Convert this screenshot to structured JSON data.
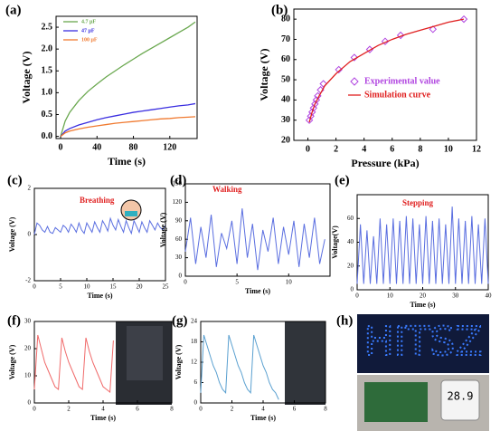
{
  "chart_data": [
    {
      "type": "line",
      "label": "(a)",
      "x_label": "Time (s)",
      "y_label": "Voltage (V)",
      "legend": "upper left",
      "x": [
        0,
        5,
        10,
        20,
        30,
        40,
        50,
        60,
        70,
        80,
        90,
        100,
        110,
        120,
        130,
        140,
        148
      ],
      "series": [
        {
          "name": "4.7 μF",
          "color": "#6aa84f",
          "values": [
            0,
            0.35,
            0.55,
            0.82,
            1.03,
            1.2,
            1.36,
            1.5,
            1.64,
            1.77,
            1.9,
            2.02,
            2.14,
            2.26,
            2.38,
            2.5,
            2.62
          ]
        },
        {
          "name": "47 μF",
          "color": "#3a2ee0",
          "values": [
            0,
            0.12,
            0.18,
            0.26,
            0.32,
            0.38,
            0.43,
            0.47,
            0.51,
            0.55,
            0.58,
            0.61,
            0.64,
            0.67,
            0.7,
            0.72,
            0.75
          ]
        },
        {
          "name": "100 μF",
          "color": "#f07a30",
          "values": [
            0,
            0.08,
            0.12,
            0.17,
            0.21,
            0.24,
            0.27,
            0.3,
            0.32,
            0.34,
            0.36,
            0.38,
            0.4,
            0.41,
            0.43,
            0.44,
            0.45
          ]
        }
      ],
      "xlim": [
        -5,
        150
      ],
      "xticks": [
        0,
        40,
        80,
        120
      ],
      "ylim": [
        -0.05,
        2.75
      ],
      "yticks": [
        {
          "value": 0,
          "label": "0.0"
        },
        0.5,
        {
          "value": 1,
          "label": "1.0"
        },
        1.5,
        {
          "value": 2,
          "label": "2.0"
        },
        2.5
      ]
    },
    {
      "type": "scatter",
      "label": "(b)",
      "x_label": "Pressure (kPa)",
      "y_label": "Voltage (V)",
      "legend": "lower right",
      "series": [
        {
          "name": "Experimental value",
          "color": "#b044e0",
          "marker": "diamond",
          "x": [
            0.1,
            0.2,
            0.3,
            0.4,
            0.5,
            0.6,
            0.7,
            0.9,
            1.1,
            2.2,
            3.3,
            4.4,
            5.5,
            6.6,
            8.9,
            11.1
          ],
          "values": [
            30,
            32,
            34,
            36,
            38,
            40,
            42,
            45,
            48,
            55,
            61,
            65,
            69,
            72,
            75,
            80
          ]
        },
        {
          "name": "Simulation curve",
          "color": "#e02020",
          "x": [
            0.1,
            0.3,
            0.5,
            0.8,
            1.2,
            2,
            3,
            4,
            5,
            6,
            7,
            8,
            9,
            10,
            11.1
          ],
          "values": [
            29,
            34,
            38,
            42,
            47,
            53,
            59,
            63,
            67,
            70,
            72.5,
            74.5,
            76.5,
            78.5,
            80
          ]
        }
      ],
      "xlim": [
        -1,
        12
      ],
      "xticks": [
        0,
        2,
        4,
        6,
        8,
        10,
        12
      ],
      "ylim": [
        20,
        85
      ],
      "yticks": [
        20,
        30,
        40,
        50,
        60,
        70,
        80
      ]
    },
    {
      "type": "line",
      "label": "(c)",
      "x_label": "Time (s)",
      "y_label": "Voltage (V)",
      "annotation": "Breathing",
      "x": [
        0,
        0.5,
        1,
        1.5,
        2,
        2.5,
        3,
        3.5,
        4,
        4.5,
        5,
        5.5,
        6,
        6.5,
        7,
        7.5,
        8,
        8.5,
        9,
        9.5,
        10,
        10.5,
        11,
        11.5,
        12,
        12.5,
        13,
        13.5,
        14,
        14.5,
        15,
        15.5,
        16,
        16.5,
        17,
        17.5,
        18,
        18.5,
        19,
        19.5,
        20,
        20.5,
        21,
        21.5,
        22,
        22.5,
        23,
        23.5,
        24,
        24.5,
        25
      ],
      "series": [
        {
          "color": "#5a6ee0",
          "values": [
            0,
            0.5,
            0.4,
            0.2,
            0.1,
            0.35,
            0.1,
            0.05,
            0.3,
            0.2,
            0.1,
            0.4,
            0.3,
            0.1,
            0.45,
            0.3,
            0.1,
            0.5,
            0.2,
            0.05,
            0.5,
            0.3,
            0.1,
            0.55,
            0.3,
            0.1,
            0.6,
            0.4,
            0.15,
            0.7,
            0.4,
            0.2,
            0.65,
            0.35,
            0.1,
            0.6,
            0.3,
            0.05,
            0.6,
            0.35,
            0.1,
            0.55,
            0.3,
            0.1,
            0.6,
            0.4,
            0.2,
            0.5,
            0.3,
            0.2,
            0.4
          ]
        }
      ],
      "xlim": [
        0,
        25
      ],
      "xticks": [
        0,
        5,
        10,
        15,
        20,
        25
      ],
      "ylim": [
        -2,
        2
      ],
      "yticks": [
        -2,
        0,
        2
      ]
    },
    {
      "type": "line",
      "label": "(d)",
      "x_label": "Time (s)",
      "y_label": "Voltage (V)",
      "annotation": "Walking",
      "x": [
        0,
        0.5,
        1,
        1.5,
        2,
        2.5,
        3,
        3.5,
        4,
        4.5,
        5,
        5.5,
        6,
        6.5,
        7,
        7.5,
        8,
        8.5,
        9,
        9.5,
        10,
        10.5,
        11,
        11.5,
        12,
        12.5,
        13,
        13.5
      ],
      "series": [
        {
          "color": "#5a6ee0",
          "values": [
            40,
            95,
            20,
            80,
            30,
            100,
            15,
            70,
            45,
            90,
            20,
            110,
            30,
            85,
            10,
            75,
            40,
            95,
            20,
            80,
            35,
            90,
            15,
            85,
            30,
            95,
            20,
            60
          ]
        }
      ],
      "xlim": [
        0,
        14
      ],
      "xticks": [
        0,
        5,
        10
      ],
      "ylim": [
        0,
        150
      ],
      "yticks": [
        0,
        30,
        60,
        90,
        120,
        150
      ]
    },
    {
      "type": "line",
      "label": "(e)",
      "x_label": "Time (s)",
      "y_label": "Voltage(V)",
      "annotation": "Stepping",
      "x": [
        0,
        1,
        2,
        3,
        4,
        5,
        6,
        7,
        8,
        9,
        10,
        11,
        12,
        13,
        14,
        15,
        16,
        17,
        18,
        19,
        20,
        21,
        22,
        23,
        24,
        25,
        26,
        27,
        28,
        29,
        30,
        31,
        32,
        33,
        34,
        35,
        36,
        37,
        38,
        39,
        40
      ],
      "series": [
        {
          "color": "#5a6ee0",
          "values": [
            5,
            55,
            5,
            50,
            5,
            45,
            5,
            60,
            5,
            55,
            5,
            60,
            5,
            58,
            5,
            62,
            5,
            60,
            5,
            55,
            5,
            62,
            5,
            58,
            5,
            60,
            5,
            55,
            5,
            70,
            5,
            60,
            5,
            58,
            5,
            62,
            5,
            55,
            5,
            60,
            5
          ]
        }
      ],
      "xlim": [
        0,
        40
      ],
      "xticks": [
        0,
        10,
        20,
        30,
        40
      ],
      "ylim": [
        0,
        80
      ],
      "yticks": [
        0,
        20,
        40,
        60
      ]
    },
    {
      "type": "line",
      "label": "(f)",
      "x_label": "Time (s)",
      "y_label": "Voltage (V)",
      "x": [
        0,
        0.2,
        0.4,
        0.6,
        0.8,
        1,
        1.2,
        1.4,
        1.6,
        1.8,
        2,
        2.2,
        2.4,
        2.6,
        2.8,
        3,
        3.2,
        3.4,
        3.6,
        3.8,
        4,
        4.2,
        4.4,
        4.6
      ],
      "series": [
        {
          "color": "#f06a6a",
          "values": [
            5,
            25,
            20,
            15,
            12,
            9,
            6,
            5,
            24,
            19,
            15,
            12,
            9,
            6,
            5,
            24,
            19,
            15,
            12,
            9,
            6,
            5,
            4,
            23
          ]
        }
      ],
      "xlim": [
        0,
        8
      ],
      "xticks": [
        0,
        2,
        4,
        6,
        8
      ],
      "ylim": [
        0,
        30
      ],
      "yticks": [
        0,
        10,
        20,
        30
      ]
    },
    {
      "type": "line",
      "label": "(g)",
      "x_label": "Time (s)",
      "y_label": "Voltage (V)",
      "x": [
        0,
        0.2,
        0.4,
        0.6,
        0.8,
        1,
        1.2,
        1.4,
        1.6,
        1.8,
        2,
        2.2,
        2.4,
        2.6,
        2.8,
        3,
        3.2,
        3.4,
        3.6,
        3.8,
        4,
        4.2,
        4.4,
        4.6,
        4.8,
        5
      ],
      "series": [
        {
          "color": "#5aa0d0",
          "values": [
            3,
            20,
            17,
            14,
            11,
            9,
            6,
            4,
            3,
            20,
            17,
            14,
            11,
            9,
            6,
            4,
            3,
            20,
            17,
            14,
            11,
            9,
            6,
            4,
            3,
            1
          ]
        }
      ],
      "xlim": [
        0,
        8
      ],
      "xticks": [
        0,
        2,
        4,
        6,
        8
      ],
      "ylim": [
        0,
        24
      ],
      "yticks": [
        0,
        6,
        12,
        18,
        24
      ]
    }
  ],
  "panel_h": {
    "label": "(h)",
    "led_sign": "HITSZ",
    "thermometer": "28.9"
  }
}
